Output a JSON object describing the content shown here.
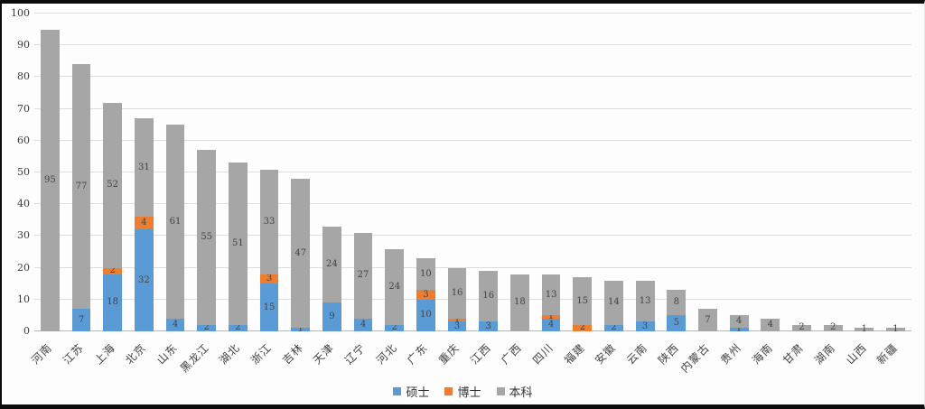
{
  "chart_data": {
    "type": "bar",
    "stacked": true,
    "title": "",
    "xlabel": "",
    "ylabel": "",
    "ylim": [
      0,
      100
    ],
    "ytick_interval": 10,
    "yticks": [
      0,
      10,
      20,
      30,
      40,
      50,
      60,
      70,
      80,
      90,
      100
    ],
    "grid": true,
    "legend_position": "bottom",
    "categories": [
      "河南",
      "江苏",
      "上海",
      "北京",
      "山东",
      "黑龙江",
      "湖北",
      "浙江",
      "吉林",
      "天津",
      "辽宁",
      "河北",
      "广东",
      "重庆",
      "江西",
      "广西",
      "四川",
      "福建",
      "安徽",
      "云南",
      "陕西",
      "内蒙古",
      "贵州",
      "海南",
      "甘肃",
      "湖南",
      "山西",
      "新疆"
    ],
    "series": [
      {
        "name": "硕士",
        "color": "#5B9BD5",
        "values": [
          0,
          7,
          18,
          32,
          4,
          2,
          2,
          15,
          1,
          9,
          4,
          2,
          10,
          3,
          3,
          0,
          4,
          0,
          2,
          3,
          5,
          0,
          1,
          0,
          0,
          0,
          0,
          0
        ]
      },
      {
        "name": "博士",
        "color": "#ED7D31",
        "values": [
          0,
          0,
          2,
          4,
          0,
          0,
          0,
          3,
          0,
          0,
          0,
          0,
          3,
          1,
          0,
          0,
          1,
          2,
          0,
          0,
          0,
          0,
          0,
          0,
          0,
          0,
          0,
          0
        ]
      },
      {
        "name": "本科",
        "color": "#A6A6A6",
        "values": [
          95,
          77,
          52,
          31,
          61,
          55,
          51,
          33,
          47,
          24,
          27,
          24,
          10,
          16,
          16,
          18,
          13,
          15,
          14,
          13,
          8,
          7,
          4,
          4,
          2,
          2,
          1,
          1
        ]
      }
    ],
    "totals": [
      95,
      84,
      72,
      67,
      65,
      57,
      53,
      51,
      48,
      33,
      31,
      26,
      23,
      20,
      19,
      18,
      18,
      17,
      16,
      16,
      13,
      7,
      5,
      4,
      2,
      2,
      1,
      1
    ],
    "gridline_color": "#dcdcdc",
    "axis_line_color": "#b9b9b9",
    "label_color": "#434343"
  }
}
